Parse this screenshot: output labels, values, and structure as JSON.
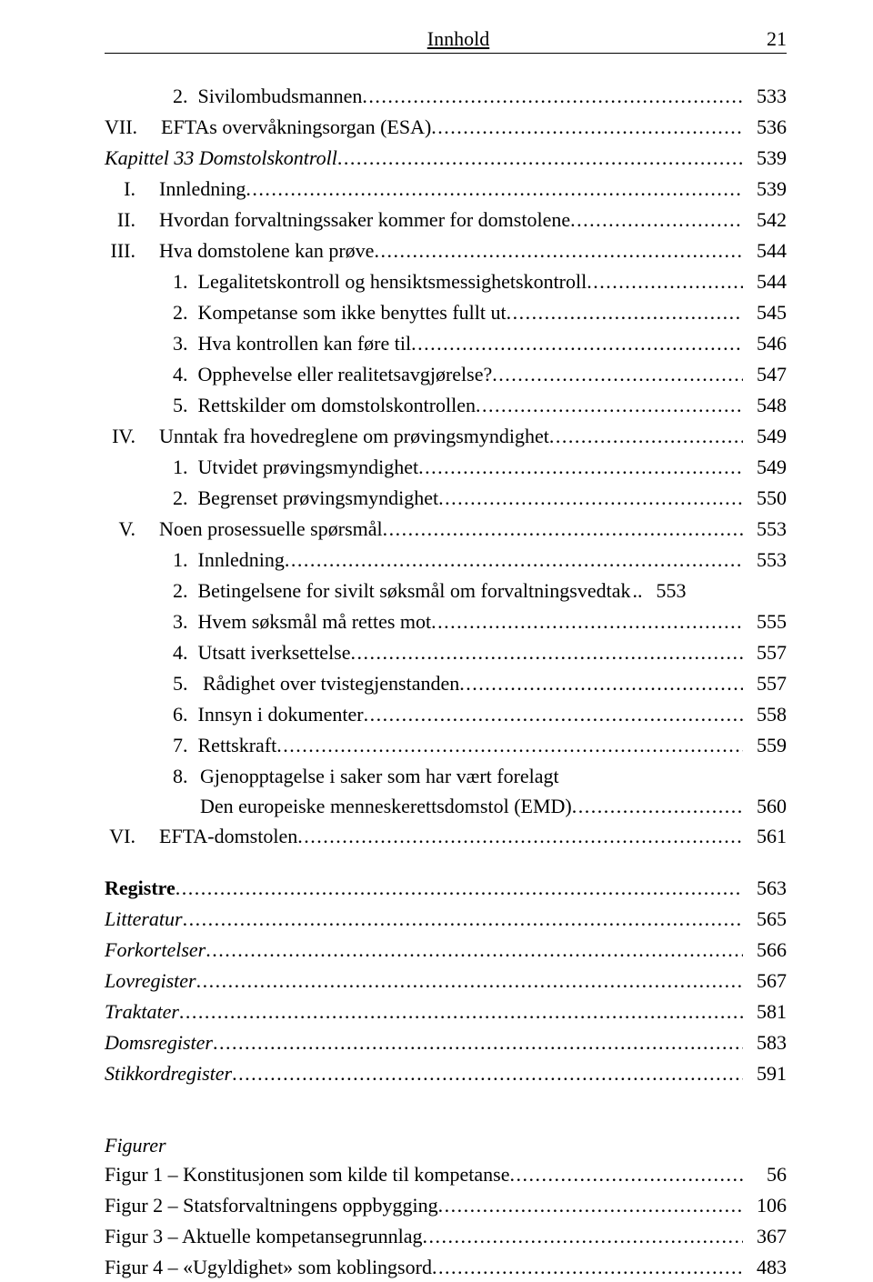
{
  "header": {
    "title": "Innhold",
    "page_number": "21"
  },
  "main_toc": [
    {
      "indent": 2,
      "prefix": "2.  ",
      "text": "Sivilombudsmannen",
      "page": "533"
    },
    {
      "indent": 1,
      "prefix": "VII.  ",
      "text": "EFTAs overvåkningsorgan (ESA)",
      "page": "536"
    },
    {
      "indent": 0,
      "prefix": "",
      "text": "Kapittel 33 Domstolskontroll",
      "page": "539",
      "italic": true
    },
    {
      "indent": 1,
      "prefix": "I.  ",
      "text": "Innledning",
      "page": "539"
    },
    {
      "indent": 1,
      "prefix": "II.  ",
      "text": "Hvordan forvaltningssaker kommer for domstolene",
      "page": "542"
    },
    {
      "indent": 1,
      "prefix": "III.  ",
      "text": "Hva domstolene kan prøve",
      "page": "544"
    },
    {
      "indent": 2,
      "prefix": "1.  ",
      "text": "Legalitetskontroll og hensiktsmessighetskontroll",
      "page": "544"
    },
    {
      "indent": 2,
      "prefix": "2.  ",
      "text": "Kompetanse som ikke benyttes fullt ut",
      "page": "545"
    },
    {
      "indent": 2,
      "prefix": "3.  ",
      "text": "Hva kontrollen kan føre til",
      "page": "546"
    },
    {
      "indent": 2,
      "prefix": "4.  ",
      "text": "Opphevelse eller realitetsavgjørelse?",
      "page": "547"
    },
    {
      "indent": 2,
      "prefix": "5.  ",
      "text": "Rettskilder om domstolskontrollen",
      "page": "548"
    },
    {
      "indent": 1,
      "prefix": "IV.  ",
      "text": "Unntak fra hovedreglene om prøvingsmyndighet",
      "page": "549"
    },
    {
      "indent": 2,
      "prefix": "1.  ",
      "text": "Utvidet prøvingsmyndighet",
      "page": "549"
    },
    {
      "indent": 2,
      "prefix": "2.  ",
      "text": "Begrenset prøvingsmyndighet",
      "page": "550"
    },
    {
      "indent": 1,
      "prefix": "V.  ",
      "text": "Noen prosessuelle spørsmål",
      "page": "553"
    },
    {
      "indent": 2,
      "prefix": "1.  ",
      "text": "Innledning",
      "page": "553"
    },
    {
      "indent": 2,
      "prefix": "2.  ",
      "text": "Betingelsene for sivilt søksmål om forvaltningsvedtak",
      "page": "553",
      "dots": ".."
    },
    {
      "indent": 2,
      "prefix": "3.  ",
      "text": "Hvem søksmål må rettes mot",
      "page": "555"
    },
    {
      "indent": 2,
      "prefix": "4.  ",
      "text": "Utsatt iverksettelse",
      "page": "557"
    },
    {
      "indent": 2,
      "prefix": "5.  ",
      "text": " Rådighet over tvistegjenstanden",
      "page": "557"
    },
    {
      "indent": 2,
      "prefix": "6.  ",
      "text": "Innsyn i dokumenter",
      "page": "558"
    },
    {
      "indent": 2,
      "prefix": "7.  ",
      "text": "Rettskraft",
      "page": "559"
    }
  ],
  "multiline_entry": {
    "prefix": "8.  ",
    "line1": "Gjenopptagelse i saker som har vært forelagt",
    "line2": "Den europeiske menneskerettsdomstol (EMD)",
    "page": "560"
  },
  "after_multiline": [
    {
      "indent": 1,
      "prefix": "VI.  ",
      "text": "EFTA-domstolen",
      "page": "561"
    }
  ],
  "registers_heading": "Registre",
  "registers": [
    {
      "text": "Litteratur",
      "page": "565",
      "italic": true
    },
    {
      "text": "Forkortelser",
      "page": "566",
      "italic": true
    },
    {
      "text": "Lovregister",
      "page": "567",
      "italic": true
    },
    {
      "text": "Traktater",
      "page": "581",
      "italic": true
    },
    {
      "text": "Domsregister",
      "page": "583",
      "italic": true
    },
    {
      "text": "Stikkordregister",
      "page": "591",
      "italic": true
    }
  ],
  "registers_page": "563",
  "figures_heading": "Figurer",
  "figures": [
    {
      "text": "Figur 1 – Konstitusjonen som kilde til kompetanse",
      "page": "56"
    },
    {
      "text": "Figur 2 – Statsforvaltningens oppbygging",
      "page": "106"
    },
    {
      "text": "Figur 3 – Aktuelle kompetansegrunnlag",
      "page": "367"
    },
    {
      "text": "Figur 4 – «Ugyldighet» som koblingsord",
      "page": "483"
    }
  ]
}
